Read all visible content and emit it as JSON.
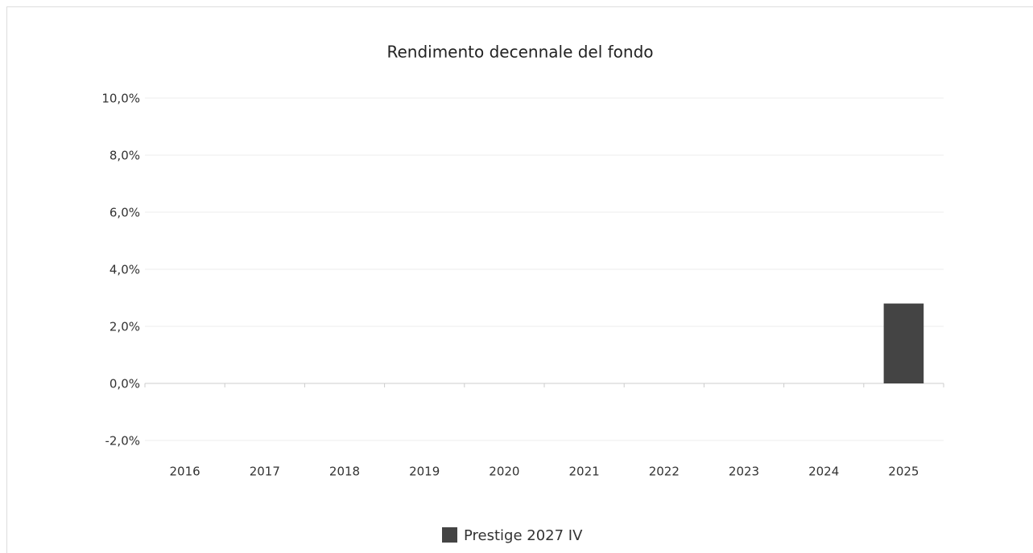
{
  "chart_data": {
    "type": "bar",
    "title": "Rendimento decennale del fondo",
    "categories": [
      "2016",
      "2017",
      "2018",
      "2019",
      "2020",
      "2021",
      "2022",
      "2023",
      "2024",
      "2025"
    ],
    "series": [
      {
        "name": "Prestige 2027 IV",
        "color": "#444444",
        "values": [
          null,
          null,
          null,
          null,
          null,
          null,
          null,
          null,
          null,
          2.8
        ]
      }
    ],
    "ylim": [
      -2,
      10
    ],
    "yticks": [
      {
        "value": -2,
        "label": "-2,0%"
      },
      {
        "value": 0,
        "label": "0,0%"
      },
      {
        "value": 2,
        "label": "2,0%"
      },
      {
        "value": 4,
        "label": "4,0%"
      },
      {
        "value": 6,
        "label": "6,0%"
      },
      {
        "value": 8,
        "label": "8,0%"
      },
      {
        "value": 10,
        "label": "10,0%"
      }
    ],
    "grid": true,
    "legend": "bottom"
  }
}
